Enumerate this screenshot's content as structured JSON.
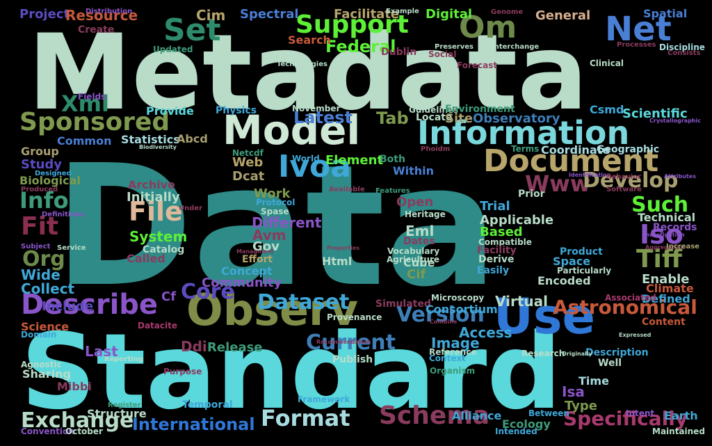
{
  "background": "#000000",
  "words": [
    {
      "text": "Data",
      "color": "#2e8b87"
    },
    {
      "text": "Metadata",
      "color": "#b8dcc8"
    },
    {
      "text": "Standard",
      "color": "#5ad8dc"
    },
    {
      "text": "Model",
      "color": "#cfe7d5"
    },
    {
      "text": "Information",
      "color": "#7ad7dc"
    },
    {
      "text": "Observ",
      "color": "#7f8d48"
    },
    {
      "text": "Use",
      "color": "#2f78d8"
    },
    {
      "text": "Document",
      "color": "#b7a56b"
    },
    {
      "text": "Set",
      "color": "#2e8b6b"
    },
    {
      "text": "Om",
      "color": "#6d8a4b"
    },
    {
      "text": "Net",
      "color": "#4a7fd6"
    },
    {
      "text": "Support",
      "color": "#5df037"
    },
    {
      "text": "Sponsored",
      "color": "#7f9a4f"
    },
    {
      "text": "Ivoa",
      "color": "#3fa8d8"
    },
    {
      "text": "Describe",
      "color": "#8a55c8"
    },
    {
      "text": "Schema",
      "color": "#8a3b5e"
    },
    {
      "text": "Format",
      "color": "#a8dce0"
    },
    {
      "text": "File",
      "color": "#e0b89a"
    },
    {
      "text": "Xml",
      "color": "#2e8b6b"
    },
    {
      "text": "Fit",
      "color": "#8a2f4f"
    },
    {
      "text": "Info",
      "color": "#3e9c7a"
    },
    {
      "text": "Org",
      "color": "#6d8a4b"
    },
    {
      "text": "Iso",
      "color": "#8a55c8"
    },
    {
      "text": "Tiff",
      "color": "#7f9a4f"
    },
    {
      "text": "Such",
      "color": "#5df037"
    },
    {
      "text": "Www",
      "color": "#8a3b5e"
    },
    {
      "text": "Develop",
      "color": "#a8a070"
    },
    {
      "text": "Astronomical",
      "color": "#c85a3b"
    },
    {
      "text": "Dataset",
      "color": "#3fa8d8"
    },
    {
      "text": "Version",
      "color": "#3f7fb8"
    },
    {
      "text": "Exchange",
      "color": "#b8dcc8"
    },
    {
      "text": "Specifically",
      "color": "#a83a6e"
    },
    {
      "text": "International",
      "color": "#2f78d8"
    },
    {
      "text": "Current",
      "color": "#3f7fb8"
    },
    {
      "text": "Core",
      "color": "#5a4cc0"
    },
    {
      "text": "Latest",
      "color": "#4a7fd6"
    },
    {
      "text": "Tab",
      "color": "#7f9a4f"
    },
    {
      "text": "Federal",
      "color": "#5df037"
    },
    {
      "text": "Facilitate",
      "color": "#b7a56b"
    },
    {
      "text": "Spectral",
      "color": "#4a7fd6"
    },
    {
      "text": "Digital",
      "color": "#5df037"
    },
    {
      "text": "General",
      "color": "#d8b090"
    },
    {
      "text": "Project",
      "color": "#5a4cc0"
    },
    {
      "text": "Resource",
      "color": "#c85a3b"
    },
    {
      "text": "Cim",
      "color": "#b7a56b"
    },
    {
      "text": "Search",
      "color": "#c85a3b"
    },
    {
      "text": "Create",
      "color": "#8a3b5e"
    },
    {
      "text": "Updated",
      "color": "#3e9c7a"
    },
    {
      "text": "Dublin",
      "color": "#8a3b5e"
    },
    {
      "text": "Spatial",
      "color": "#4a7fd6"
    },
    {
      "text": "Discipline",
      "color": "#a8dce0"
    },
    {
      "text": "Forecast",
      "color": "#8a3b5e"
    },
    {
      "text": "Clinical",
      "color": "#b8dcc8"
    },
    {
      "text": "Fields",
      "color": "#8a55c8"
    },
    {
      "text": "Provide",
      "color": "#5ad8dc"
    },
    {
      "text": "Physics",
      "color": "#3fa8d8"
    },
    {
      "text": "November",
      "color": "#b8dcc8"
    },
    {
      "text": "Guidelines",
      "color": "#b8dcc8"
    },
    {
      "text": "Environment",
      "color": "#3e9c7a"
    },
    {
      "text": "Csmd",
      "color": "#3fa8d8"
    },
    {
      "text": "Scientific",
      "color": "#5ad8dc"
    },
    {
      "text": "Locate",
      "color": "#b8dcc8"
    },
    {
      "text": "Site",
      "color": "#a8a070"
    },
    {
      "text": "Observatory",
      "color": "#3f7fb8"
    },
    {
      "text": "Common",
      "color": "#4a7fd6"
    },
    {
      "text": "Statistics",
      "color": "#a8dce0"
    },
    {
      "text": "Abcd",
      "color": "#a8a070"
    },
    {
      "text": "Group",
      "color": "#a8a070"
    },
    {
      "text": "Study",
      "color": "#5a4cc0"
    },
    {
      "text": "Biological",
      "color": "#7f9a4f"
    },
    {
      "text": "Netcdf",
      "color": "#3e9c7a"
    },
    {
      "text": "World",
      "color": "#3fa8d8"
    },
    {
      "text": "Web",
      "color": "#b7a56b"
    },
    {
      "text": "Dcat",
      "color": "#a8a070"
    },
    {
      "text": "Element",
      "color": "#5df037"
    },
    {
      "text": "Both",
      "color": "#3e9c7a"
    },
    {
      "text": "Within",
      "color": "#4a7fd6"
    },
    {
      "text": "Terms",
      "color": "#3e9c7a"
    },
    {
      "text": "Coordinate",
      "color": "#a8dce0"
    },
    {
      "text": "Geographic",
      "color": "#a8dce0"
    },
    {
      "text": "Archive",
      "color": "#8a3b5e"
    },
    {
      "text": "Initially",
      "color": "#b8dcc8"
    },
    {
      "text": "Work",
      "color": "#7f9a4f"
    },
    {
      "text": "Protocol",
      "color": "#3fa8d8"
    },
    {
      "text": "Spase",
      "color": "#b8dcc8"
    },
    {
      "text": "Different",
      "color": "#8a55c8"
    },
    {
      "text": "System",
      "color": "#5df037"
    },
    {
      "text": "Catalog",
      "color": "#b8dcc8"
    },
    {
      "text": "Called",
      "color": "#8a3b5e"
    },
    {
      "text": "Avm",
      "color": "#8a3b5e"
    },
    {
      "text": "Gov",
      "color": "#b8dcc8"
    },
    {
      "text": "Effort",
      "color": "#b7a56b"
    },
    {
      "text": "Concept",
      "color": "#3fa8d8"
    },
    {
      "text": "Community",
      "color": "#8a55c8"
    },
    {
      "text": "Html",
      "color": "#b8dcc8"
    },
    {
      "text": "Open",
      "color": "#8a3b5e"
    },
    {
      "text": "Heritage",
      "color": "#b8dcc8"
    },
    {
      "text": "Eml",
      "color": "#b8dcc8"
    },
    {
      "text": "Dates",
      "color": "#8a3b5e"
    },
    {
      "text": "Vocabulary",
      "color": "#b8dcc8"
    },
    {
      "text": "Agriculture",
      "color": "#b8dcc8"
    },
    {
      "text": "Cube",
      "color": "#b8dcc8"
    },
    {
      "text": "Cif",
      "color": "#7f9a4f"
    },
    {
      "text": "Trial",
      "color": "#3fa8d8"
    },
    {
      "text": "Applicable",
      "color": "#b8dcc8"
    },
    {
      "text": "Based",
      "color": "#5df037"
    },
    {
      "text": "Compatible",
      "color": "#b8dcc8"
    },
    {
      "text": "Facility",
      "color": "#8a3b5e"
    },
    {
      "text": "Derive",
      "color": "#b8dcc8"
    },
    {
      "text": "Easily",
      "color": "#3fa8d8"
    },
    {
      "text": "Prior",
      "color": "#b8dcc8"
    },
    {
      "text": "Technical",
      "color": "#b8dcc8"
    },
    {
      "text": "Records",
      "color": "#8a55c8"
    },
    {
      "text": "Product",
      "color": "#3fa8d8"
    },
    {
      "text": "Space",
      "color": "#3fa8d8"
    },
    {
      "text": "Particularly",
      "color": "#b8dcc8"
    },
    {
      "text": "Enable",
      "color": "#b8dcc8"
    },
    {
      "text": "Climate",
      "color": "#c85a3b"
    },
    {
      "text": "Defined",
      "color": "#3fa8d8"
    },
    {
      "text": "Encoded",
      "color": "#b8dcc8"
    },
    {
      "text": "Virtual",
      "color": "#b8dcc8"
    },
    {
      "text": "Associated",
      "color": "#a83a6e"
    },
    {
      "text": "Content",
      "color": "#c85a3b"
    },
    {
      "text": "Collect",
      "color": "#3fa8d8"
    },
    {
      "text": "Wide",
      "color": "#3fa8d8"
    },
    {
      "text": "Include",
      "color": "#5a4cc0"
    },
    {
      "text": "Cf",
      "color": "#8a55c8"
    },
    {
      "text": "Science",
      "color": "#c85a3b"
    },
    {
      "text": "Domain",
      "color": "#3fa8d8"
    },
    {
      "text": "Datacite",
      "color": "#a83a6e"
    },
    {
      "text": "Provenance",
      "color": "#b8dcc8"
    },
    {
      "text": "Simulated",
      "color": "#8a3b5e"
    },
    {
      "text": "Consortium",
      "color": "#3fa8d8"
    },
    {
      "text": "Microscopy",
      "color": "#b8dcc8"
    },
    {
      "text": "Access",
      "color": "#3fa8d8"
    },
    {
      "text": "Image",
      "color": "#3fa8d8"
    },
    {
      "text": "Reference",
      "color": "#b8dcc8"
    },
    {
      "text": "Context",
      "color": "#3fa8d8"
    },
    {
      "text": "Research",
      "color": "#b8dcc8"
    },
    {
      "text": "Description",
      "color": "#3fa8d8"
    },
    {
      "text": "Well",
      "color": "#b8dcc8"
    },
    {
      "text": "Last",
      "color": "#8a55c8"
    },
    {
      "text": "Ddi",
      "color": "#8a3b5e"
    },
    {
      "text": "Release",
      "color": "#3e9c7a"
    },
    {
      "text": "Publish",
      "color": "#b8dcc8"
    },
    {
      "text": "Agnostic",
      "color": "#b8dcc8"
    },
    {
      "text": "Sharing",
      "color": "#b8dcc8"
    },
    {
      "text": "Mibbi",
      "color": "#8a3b5e"
    },
    {
      "text": "Reporting",
      "color": "#b8dcc8"
    },
    {
      "text": "Purpose",
      "color": "#8a3b5e"
    },
    {
      "text": "Organism",
      "color": "#3e9c7a"
    },
    {
      "text": "Time",
      "color": "#a8dce0"
    },
    {
      "text": "Isa",
      "color": "#8a55c8"
    },
    {
      "text": "Type",
      "color": "#7f9a4f"
    },
    {
      "text": "Register",
      "color": "#3e9c7a"
    },
    {
      "text": "Structure",
      "color": "#b8dcc8"
    },
    {
      "text": "Temporal",
      "color": "#3fa8d8"
    },
    {
      "text": "Framework",
      "color": "#3fa8d8"
    },
    {
      "text": "Convention",
      "color": "#8a55c8"
    },
    {
      "text": "October",
      "color": "#b8dcc8"
    },
    {
      "text": "Alliance",
      "color": "#3fa8d8"
    },
    {
      "text": "Ecology",
      "color": "#3e9c7a"
    },
    {
      "text": "Between",
      "color": "#3fa8d8"
    },
    {
      "text": "Intended",
      "color": "#3fa8d8"
    },
    {
      "text": "Intent",
      "color": "#8a55c8"
    },
    {
      "text": "Earth",
      "color": "#3fa8d8"
    },
    {
      "text": "Maintained",
      "color": "#b8dcc8"
    },
    {
      "text": "Distribution",
      "color": "#8a55c8"
    },
    {
      "text": "Example",
      "color": "#b8dcc8"
    },
    {
      "text": "Genome",
      "color": "#8a3b5e"
    },
    {
      "text": "Preserves",
      "color": "#b8dcc8"
    },
    {
      "text": "Interchange",
      "color": "#b8dcc8"
    },
    {
      "text": "Social",
      "color": "#8a3b5e"
    },
    {
      "text": "Processes",
      "color": "#8a3b5e"
    },
    {
      "text": "Consists",
      "color": "#8a3b5e"
    },
    {
      "text": "Technologies",
      "color": "#b8dcc8"
    },
    {
      "text": "Phoidm",
      "color": "#8a3b5e"
    },
    {
      "text": "Crystallographic",
      "color": "#8a55c8"
    },
    {
      "text": "Designed",
      "color": "#3fa8d8"
    },
    {
      "text": "Produced",
      "color": "#8a3b5e"
    },
    {
      "text": "Biodiversity",
      "color": "#b8dcc8"
    },
    {
      "text": "Definitions",
      "color": "#8a55c8"
    },
    {
      "text": "Subject",
      "color": "#8a55c8"
    },
    {
      "text": "Service",
      "color": "#b8dcc8"
    },
    {
      "text": "Under",
      "color": "#8a3b5e"
    },
    {
      "text": "Available",
      "color": "#8a3b5e"
    },
    {
      "text": "Features",
      "color": "#3e9c7a"
    },
    {
      "text": "Identification",
      "color": "#8a55c8"
    },
    {
      "text": "Behavior",
      "color": "#8a3b5e"
    },
    {
      "text": "Attributes",
      "color": "#8a55c8"
    },
    {
      "text": "Software",
      "color": "#8a3b5e"
    },
    {
      "text": "Investigation",
      "color": "#8a55c8"
    },
    {
      "text": "Managment",
      "color": "#8a3b5e"
    },
    {
      "text": "Properties",
      "color": "#8a3b5e"
    },
    {
      "text": "Aggregation",
      "color": "#8a3b5e"
    },
    {
      "text": "Increase",
      "color": "#a8a070"
    },
    {
      "text": "Expressed",
      "color": "#b8dcc8"
    },
    {
      "text": "Recommendation",
      "color": "#8a3b5e"
    },
    {
      "text": "Combine",
      "color": "#8a3b5e"
    },
    {
      "text": "Originally",
      "color": "#b8dcc8"
    }
  ]
}
